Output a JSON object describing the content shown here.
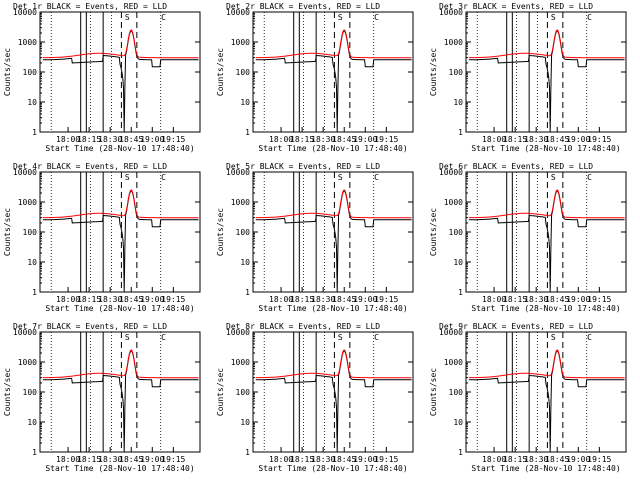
{
  "figure": {
    "background": "#ffffff",
    "events_color": "#000000",
    "lld_color": "#ff0000"
  },
  "chart_data": [
    {
      "type": "line",
      "title": "Det 1r BLACK = Events, RED = LLD",
      "xlabel": "Start Time (28-Nov-10 17:48:40)",
      "ylabel": "Counts/sec",
      "yscale": "log",
      "ylim": [
        1,
        10000
      ],
      "xlim_minutes": [
        -20,
        94
      ],
      "x_tick_labels": [
        "18:00",
        "18:15",
        "18:30",
        "18:45",
        "19:00",
        "19:15"
      ],
      "y_tick_labels": [
        "1",
        "10",
        "100",
        "1000",
        "10000"
      ],
      "show_x_ticks": true,
      "annotations": [
        "S",
        "C"
      ]
    },
    {
      "type": "line",
      "title": "Det 2r BLACK = Events, RED = LLD",
      "xlabel": "Start Time (28-Nov-10 17:48:40)",
      "ylabel": "Counts/sec",
      "yscale": "log",
      "ylim": [
        1,
        10000
      ],
      "xlim_minutes": [
        -20,
        94
      ],
      "x_tick_labels": [
        "18:00",
        "18:15",
        "18:30",
        "18:45",
        "19:00",
        "19:15"
      ],
      "y_tick_labels": [
        "1",
        "10",
        "100",
        "1000",
        "10000"
      ],
      "show_x_ticks": true,
      "annotations": [
        "S",
        "C"
      ]
    },
    {
      "type": "line",
      "title": "Det 3r BLACK = Events, RED = LLD",
      "xlabel": "Start Time (28-Nov-10 17:48:40)",
      "ylabel": "Counts/sec",
      "yscale": "log",
      "ylim": [
        1,
        10000
      ],
      "xlim_minutes": [
        -20,
        94
      ],
      "x_tick_labels": [
        "18:00",
        "18:15",
        "18:30",
        "18:45",
        "19:00",
        "19:15"
      ],
      "y_tick_labels": [
        "1",
        "10",
        "100",
        "1000",
        "10000"
      ],
      "show_x_ticks": true,
      "annotations": [
        "S",
        "C"
      ]
    },
    {
      "type": "line",
      "title": "Det 4r BLACK = Events, RED = LLD",
      "xlabel": "Start Time (28-Nov-10 17:48:40)",
      "ylabel": "Counts/sec",
      "yscale": "log",
      "ylim": [
        1,
        10000
      ],
      "xlim_minutes": [
        -20,
        94
      ],
      "x_tick_labels": [
        "18:00",
        "18:15",
        "18:30",
        "18:45",
        "19:00",
        "19:15"
      ],
      "y_tick_labels": [
        "1",
        "10",
        "100",
        "1000",
        "10000"
      ],
      "show_x_ticks": true,
      "annotations": [
        "S",
        "C"
      ]
    },
    {
      "type": "line",
      "title": "Det 5r BLACK = Events, RED = LLD",
      "xlabel": "Start Time (28-Nov-10 17:48:40)",
      "ylabel": "Counts/sec",
      "yscale": "log",
      "ylim": [
        1,
        10000
      ],
      "xlim_minutes": [
        -20,
        94
      ],
      "x_tick_labels": [
        "18:00",
        "18:15",
        "18:30",
        "18:45",
        "19:00",
        "19:15"
      ],
      "y_tick_labels": [
        "1",
        "10",
        "100",
        "1000",
        "10000"
      ],
      "show_x_ticks": true,
      "annotations": [
        "S",
        "C"
      ]
    },
    {
      "type": "line",
      "title": "Det 6r BLACK = Events, RED = LLD",
      "xlabel": "Start Time (28-Nov-10 17:48:40)",
      "ylabel": "Counts/sec",
      "yscale": "log",
      "ylim": [
        1,
        10000
      ],
      "xlim_minutes": [
        -20,
        94
      ],
      "x_tick_labels": [
        "18:00",
        "18:15",
        "18:30",
        "18:45",
        "19:00",
        "19:15"
      ],
      "y_tick_labels": [
        "1",
        "10",
        "100",
        "1000",
        "10000"
      ],
      "show_x_ticks": true,
      "annotations": [
        "S",
        "C"
      ]
    },
    {
      "type": "line",
      "title": "Det 7r BLACK = Events, RED = LLD",
      "xlabel": "Start Time (28-Nov-10 17:48:40)",
      "ylabel": "Counts/sec",
      "yscale": "log",
      "ylim": [
        1,
        10000
      ],
      "xlim_minutes": [
        -20,
        94
      ],
      "x_tick_labels": [
        "18:00",
        "18:15",
        "18:30",
        "18:45",
        "19:00",
        "19:15"
      ],
      "y_tick_labels": [
        "1",
        "10",
        "100",
        "1000",
        "10000"
      ],
      "show_x_ticks": true,
      "annotations": [
        "S",
        "C"
      ]
    },
    {
      "type": "line",
      "title": "Det 8r BLACK = Events, RED = LLD",
      "xlabel": "Start Time (28-Nov-10 17:48:40)",
      "ylabel": "Counts/sec",
      "yscale": "log",
      "ylim": [
        1,
        10000
      ],
      "xlim_minutes": [
        -20,
        94
      ],
      "x_tick_labels": [
        "18:00",
        "18:15",
        "18:30",
        "18:45",
        "19:00",
        "19:15"
      ],
      "y_tick_labels": [
        "1",
        "10",
        "100",
        "1000",
        "10000"
      ],
      "show_x_ticks": true,
      "annotations": [
        "S",
        "C"
      ]
    },
    {
      "type": "line",
      "title": "Det 9r BLACK = Events, RED = LLD",
      "xlabel": "Start Time (28-Nov-10 17:48:40)",
      "ylabel": "Counts/sec",
      "yscale": "log",
      "ylim": [
        1,
        10000
      ],
      "xlim_minutes": [
        -20,
        94
      ],
      "x_tick_labels": [
        "18:00",
        "18:15",
        "18:30",
        "18:45",
        "19:00",
        "19:15"
      ],
      "y_tick_labels": [
        "1",
        "10",
        "100",
        "1000",
        "10000"
      ],
      "show_x_ticks": true,
      "annotations": [
        "S",
        "C"
      ]
    }
  ]
}
